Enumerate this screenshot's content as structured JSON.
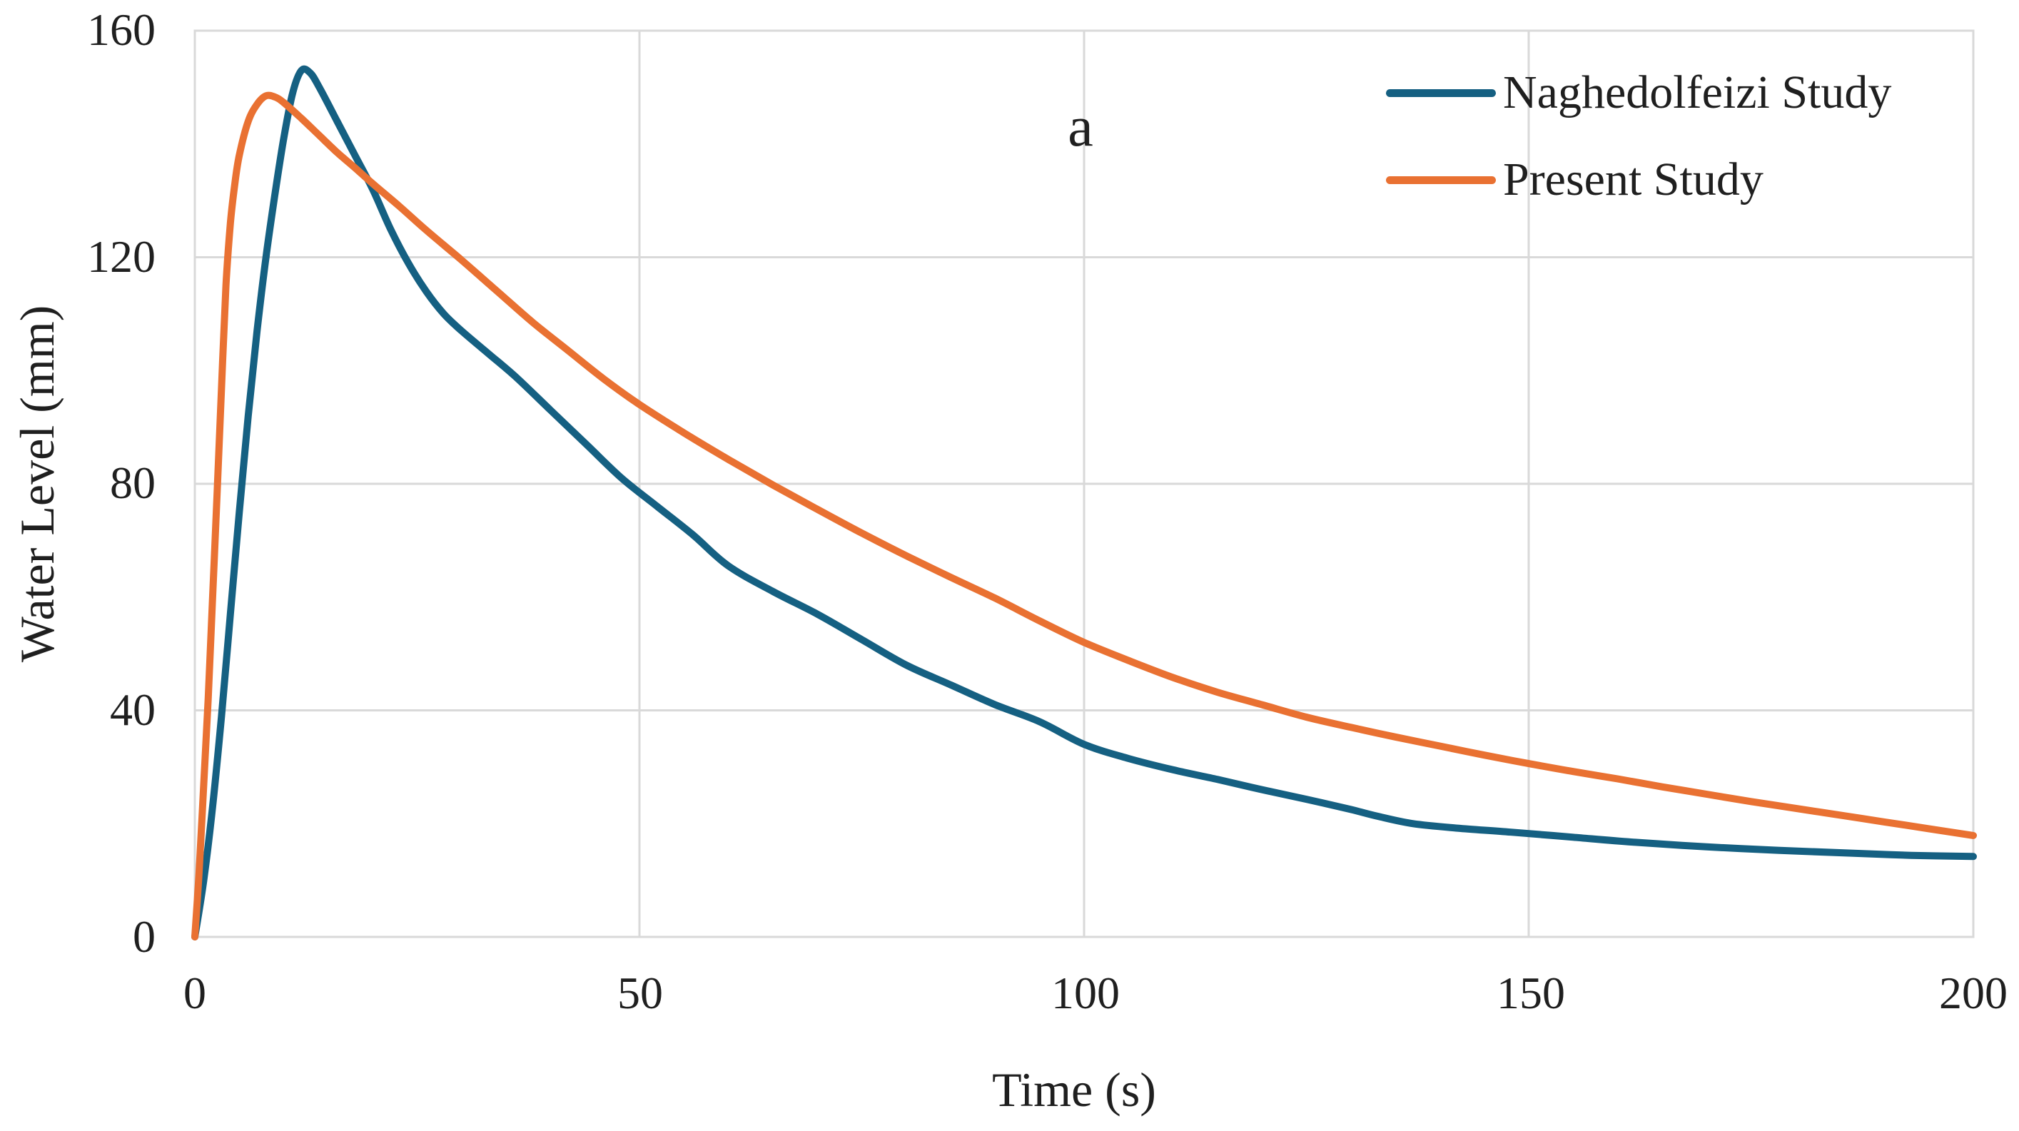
{
  "figure": {
    "annotation": "a"
  },
  "chart_data": {
    "type": "line",
    "title": "",
    "xlabel": "Time (s)",
    "ylabel": "Water Level (mm)",
    "xlim": [
      0,
      200
    ],
    "ylim": [
      0,
      160
    ],
    "x_ticks": [
      0,
      50,
      100,
      150,
      200
    ],
    "y_ticks": [
      0,
      40,
      80,
      120,
      160
    ],
    "y_ticks_display": [
      160,
      120,
      80,
      40,
      0
    ],
    "grid": true,
    "legend_position": "top-right",
    "colors": {
      "grid": "#d9d9d9",
      "frame": "#d9d9d9",
      "text": "#1f1f1f",
      "background": "#ffffff",
      "series_blue": "#156082",
      "series_orange": "#E97132"
    },
    "series": [
      {
        "name": "Naghedolfeizi Study",
        "color": "#156082",
        "points": [
          [
            0,
            0
          ],
          [
            1,
            10
          ],
          [
            2,
            23
          ],
          [
            3,
            39
          ],
          [
            4,
            57
          ],
          [
            5,
            75
          ],
          [
            6,
            92
          ],
          [
            7,
            107
          ],
          [
            8,
            120
          ],
          [
            9,
            131
          ],
          [
            10,
            141
          ],
          [
            11,
            149
          ],
          [
            12,
            153
          ],
          [
            13,
            152.5
          ],
          [
            14,
            150
          ],
          [
            16,
            144
          ],
          [
            18,
            138
          ],
          [
            20,
            132
          ],
          [
            22,
            125
          ],
          [
            24,
            119
          ],
          [
            26,
            114
          ],
          [
            28,
            110
          ],
          [
            30,
            107
          ],
          [
            33,
            103
          ],
          [
            36,
            99
          ],
          [
            40,
            93
          ],
          [
            44,
            87
          ],
          [
            48,
            81
          ],
          [
            52,
            76
          ],
          [
            56,
            71
          ],
          [
            60,
            65.5
          ],
          [
            65,
            61
          ],
          [
            70,
            57
          ],
          [
            75,
            52.5
          ],
          [
            80,
            48
          ],
          [
            85,
            44.5
          ],
          [
            90,
            41
          ],
          [
            95,
            38
          ],
          [
            100,
            34
          ],
          [
            105,
            31.5
          ],
          [
            110,
            29.5
          ],
          [
            115,
            27.8
          ],
          [
            120,
            26
          ],
          [
            125,
            24.3
          ],
          [
            130,
            22.5
          ],
          [
            133,
            21.3
          ],
          [
            137,
            20
          ],
          [
            142,
            19.2
          ],
          [
            148,
            18.5
          ],
          [
            155,
            17.6
          ],
          [
            162,
            16.7
          ],
          [
            170,
            15.9
          ],
          [
            178,
            15.3
          ],
          [
            186,
            14.8
          ],
          [
            193,
            14.4
          ],
          [
            200,
            14.2
          ]
        ]
      },
      {
        "name": "Present Study",
        "color": "#E97132",
        "points": [
          [
            0,
            0
          ],
          [
            0.5,
            12
          ],
          [
            1,
            27
          ],
          [
            1.5,
            42
          ],
          [
            2,
            60
          ],
          [
            2.5,
            78
          ],
          [
            3,
            97
          ],
          [
            3.5,
            115
          ],
          [
            4,
            126
          ],
          [
            4.5,
            133
          ],
          [
            5,
            138
          ],
          [
            6,
            144
          ],
          [
            7,
            147
          ],
          [
            8,
            148.5
          ],
          [
            9,
            148.3
          ],
          [
            10,
            147.3
          ],
          [
            12,
            144.5
          ],
          [
            14,
            141.5
          ],
          [
            16,
            138.5
          ],
          [
            18,
            135.8
          ],
          [
            20,
            133
          ],
          [
            23,
            129
          ],
          [
            26,
            124.8
          ],
          [
            30,
            119.5
          ],
          [
            34,
            114
          ],
          [
            38,
            108.5
          ],
          [
            42,
            103.5
          ],
          [
            46,
            98.5
          ],
          [
            50,
            94
          ],
          [
            55,
            89
          ],
          [
            60,
            84.3
          ],
          [
            65,
            79.8
          ],
          [
            70,
            75.5
          ],
          [
            75,
            71.3
          ],
          [
            80,
            67.3
          ],
          [
            85,
            63.5
          ],
          [
            90,
            59.8
          ],
          [
            95,
            55.8
          ],
          [
            100,
            52
          ],
          [
            105,
            48.8
          ],
          [
            110,
            45.8
          ],
          [
            115,
            43.2
          ],
          [
            120,
            41
          ],
          [
            125,
            38.8
          ],
          [
            130,
            37
          ],
          [
            135,
            35.3
          ],
          [
            140,
            33.7
          ],
          [
            145,
            32.1
          ],
          [
            150,
            30.6
          ],
          [
            155,
            29.2
          ],
          [
            160,
            27.9
          ],
          [
            165,
            26.5
          ],
          [
            170,
            25.2
          ],
          [
            175,
            23.9
          ],
          [
            180,
            22.7
          ],
          [
            185,
            21.5
          ],
          [
            190,
            20.3
          ],
          [
            195,
            19.1
          ],
          [
            200,
            17.9
          ]
        ]
      }
    ]
  }
}
